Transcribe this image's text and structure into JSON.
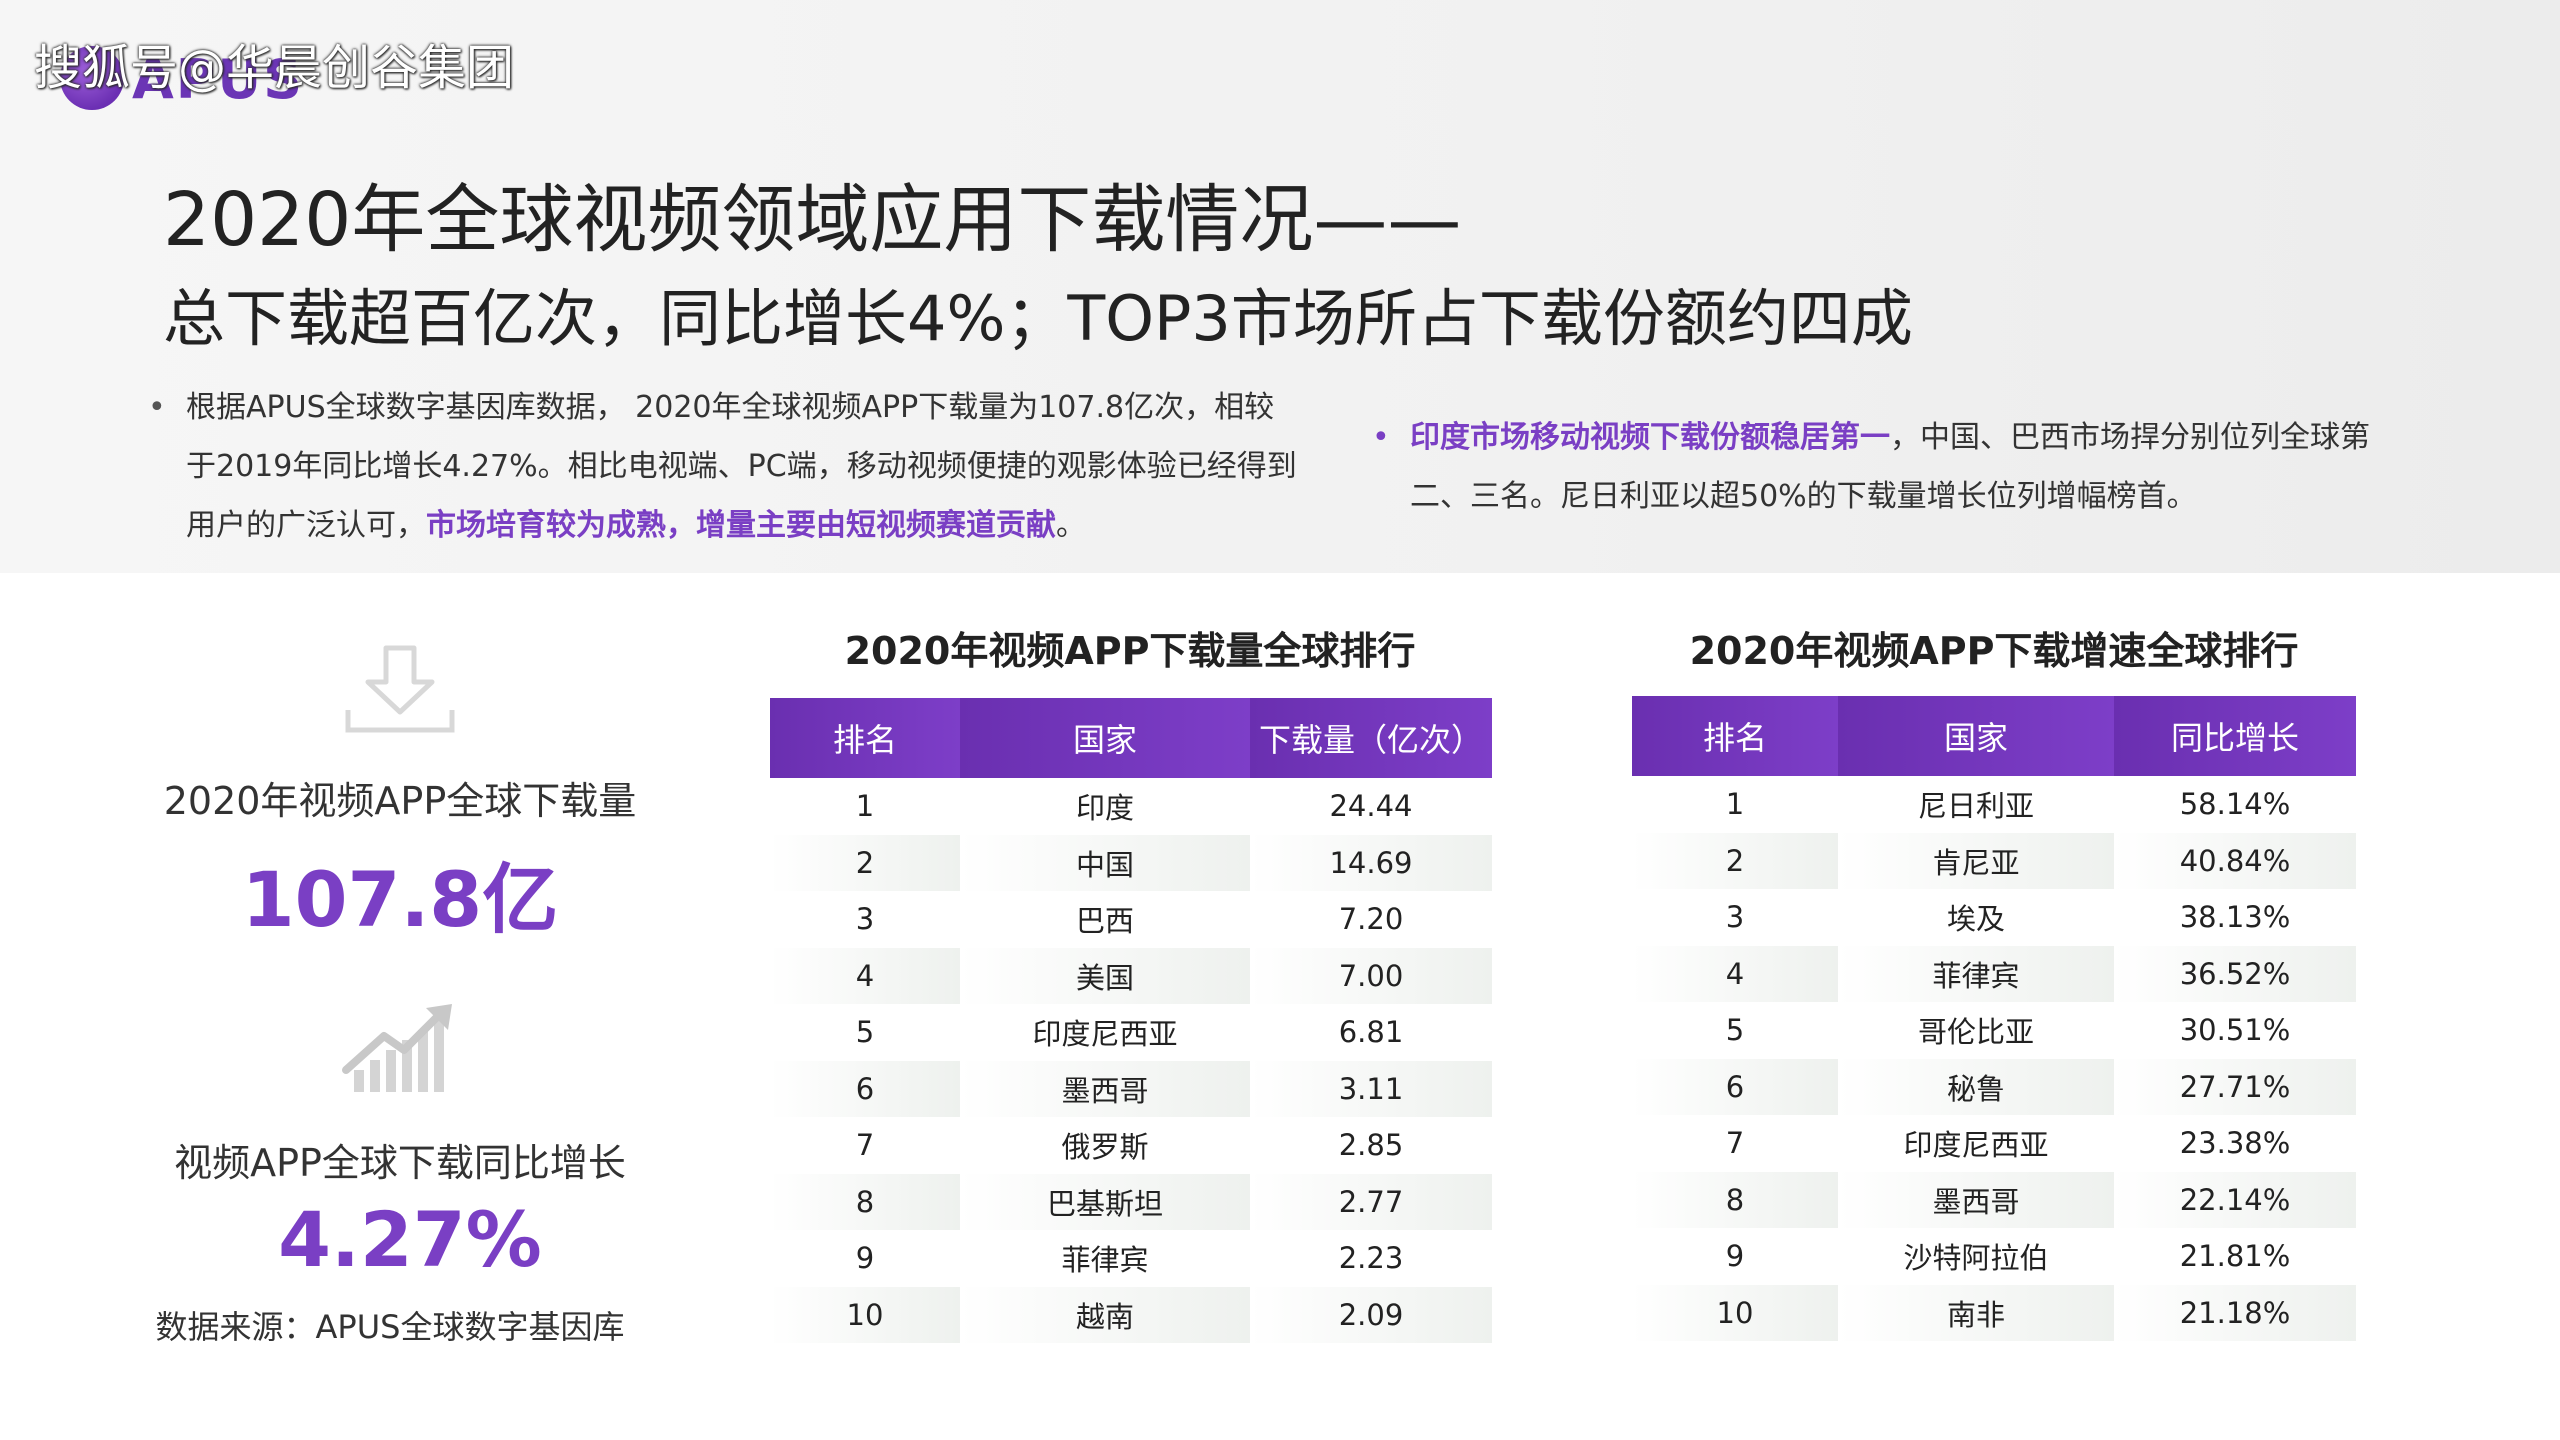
{
  "watermark": "搜狐号@华晨创谷集团",
  "logo": {
    "text": "APUS",
    "icon": "apus-logo-icon"
  },
  "title": {
    "line1": "2020年全球视频领域应用下载情况——",
    "line2": "总下载超百亿次，同比增长4%；TOP3市场所占下载份额约四成"
  },
  "bullet_left": {
    "text_a": "根据APUS全球数字基因库数据， 2020年全球视频APP下载量为107.8亿次，相较于2019年同比增长4.27%。相比电视端、PC端，移动视频便捷的观影体验已经得到用户的广泛认可，",
    "highlight": "市场培育较为成熟，增量主要由短视频赛道贡献",
    "text_b": "。"
  },
  "bullet_right": {
    "highlight": "印度市场移动视频下载份额稳居第一",
    "text": "，中国、巴西市场捍分别位列全球第二、三名。尼日利亚以超50%的下载量增长位列增幅榜首。"
  },
  "stats": {
    "download_label": "2020年视频APP全球下载量",
    "download_value": "107.8亿",
    "growth_label": "视频APP全球下载同比增长",
    "growth_value": "4.27%",
    "source": "数据来源：APUS全球数字基因库"
  },
  "table_downloads": {
    "title": "2020年视频APP下载量全球排行",
    "headers": [
      "排名",
      "国家",
      "下载量（亿次）"
    ],
    "rows": [
      [
        "1",
        "印度",
        "24.44"
      ],
      [
        "2",
        "中国",
        "14.69"
      ],
      [
        "3",
        "巴西",
        "7.20"
      ],
      [
        "4",
        "美国",
        "7.00"
      ],
      [
        "5",
        "印度尼西亚",
        "6.81"
      ],
      [
        "6",
        "墨西哥",
        "3.11"
      ],
      [
        "7",
        "俄罗斯",
        "2.85"
      ],
      [
        "8",
        "巴基斯坦",
        "2.77"
      ],
      [
        "9",
        "菲律宾",
        "2.23"
      ],
      [
        "10",
        "越南",
        "2.09"
      ]
    ]
  },
  "table_growth": {
    "title": "2020年视频APP下载增速全球排行",
    "headers": [
      "排名",
      "国家",
      "同比增长"
    ],
    "rows": [
      [
        "1",
        "尼日利亚",
        "58.14%"
      ],
      [
        "2",
        "肯尼亚",
        "40.84%"
      ],
      [
        "3",
        "埃及",
        "38.13%"
      ],
      [
        "4",
        "菲律宾",
        "36.52%"
      ],
      [
        "5",
        "哥伦比亚",
        "30.51%"
      ],
      [
        "6",
        "秘鲁",
        "27.71%"
      ],
      [
        "7",
        "印度尼西亚",
        "23.38%"
      ],
      [
        "8",
        "墨西哥",
        "22.14%"
      ],
      [
        "9",
        "沙特阿拉伯",
        "21.81%"
      ],
      [
        "10",
        "南非",
        "21.18%"
      ]
    ]
  },
  "colors": {
    "accent": "#7a3fc4",
    "header": "#6a2fb0"
  }
}
